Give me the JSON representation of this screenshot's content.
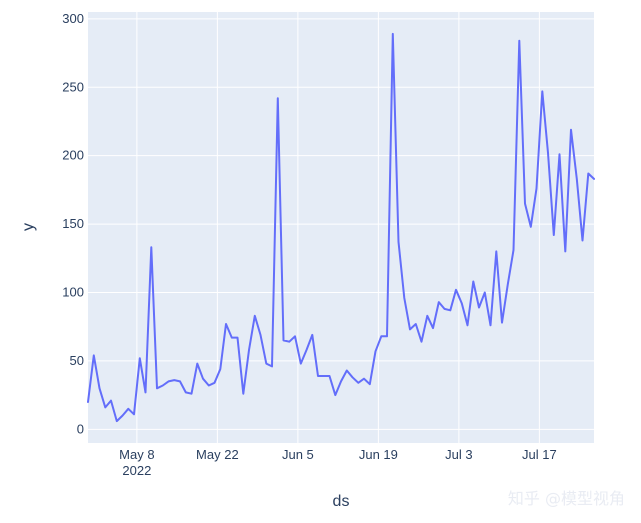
{
  "chart_data": {
    "type": "line",
    "title": "",
    "xlabel": "ds",
    "ylabel": "y",
    "ylim": [
      -10,
      305
    ],
    "yticks": [
      0,
      50,
      100,
      150,
      200,
      250,
      300
    ],
    "xlim_day": [
      -8.5,
      79.5
    ],
    "xticks": [
      {
        "day": 0,
        "label": "May 8",
        "sublabel": "2022"
      },
      {
        "day": 14,
        "label": "May 22",
        "sublabel": ""
      },
      {
        "day": 28,
        "label": "Jun 5",
        "sublabel": ""
      },
      {
        "day": 42,
        "label": "Jun 19",
        "sublabel": ""
      },
      {
        "day": 56,
        "label": "Jul 3",
        "sublabel": ""
      },
      {
        "day": 70,
        "label": "Jul 17",
        "sublabel": ""
      }
    ],
    "series": [
      {
        "name": "y",
        "color": "#636efa",
        "days": [
          -8.5,
          -7.5,
          -6.5,
          -5.5,
          -4.5,
          -3.5,
          -2.5,
          -1.5,
          -0.5,
          0.5,
          1.5,
          2.5,
          3.5,
          4.5,
          5.5,
          6.5,
          7.5,
          8.5,
          9.5,
          10.5,
          11.5,
          12.5,
          13.5,
          14.5,
          15.5,
          16.5,
          17.5,
          18.5,
          19.5,
          20.5,
          21.5,
          22.5,
          23.5,
          24.5,
          25.5,
          26.5,
          27.5,
          28.5,
          29.5,
          30.5,
          31.5,
          32.5,
          33.5,
          34.5,
          35.5,
          36.5,
          37.5,
          38.5,
          39.5,
          40.5,
          41.5,
          42.5,
          43.5,
          44.5,
          45.5,
          46.5,
          47.5,
          48.5,
          49.5,
          50.5,
          51.5,
          52.5,
          53.5,
          54.5,
          55.5,
          56.5,
          57.5,
          58.5,
          59.5,
          60.5,
          61.5,
          62.5,
          63.5,
          64.5,
          65.5,
          66.5,
          67.5,
          68.5,
          69.5,
          70.5,
          71.5,
          72.5,
          73.5,
          74.5,
          75.5,
          76.5,
          77.5,
          78.5,
          79.5
        ],
        "values": [
          20,
          54,
          30,
          16,
          21,
          6,
          10,
          15,
          11,
          52,
          27,
          133,
          30,
          32,
          35,
          36,
          35,
          27,
          26,
          48,
          37,
          32,
          34,
          44,
          77,
          67,
          67,
          26,
          58,
          83,
          69,
          48,
          46,
          242,
          65,
          64,
          68,
          48,
          58,
          69,
          39,
          39,
          39,
          25,
          35,
          43,
          38,
          34,
          37,
          33,
          57,
          68,
          68,
          289,
          137,
          96,
          73,
          77,
          64,
          83,
          74,
          93,
          88,
          87,
          102,
          92,
          76,
          108,
          89,
          100,
          76,
          130,
          78,
          106,
          131,
          284,
          165,
          148,
          176,
          247,
          202,
          142,
          201,
          130,
          219,
          183,
          138,
          187,
          183
        ]
      }
    ]
  },
  "watermark": "知乎 @模型视角"
}
